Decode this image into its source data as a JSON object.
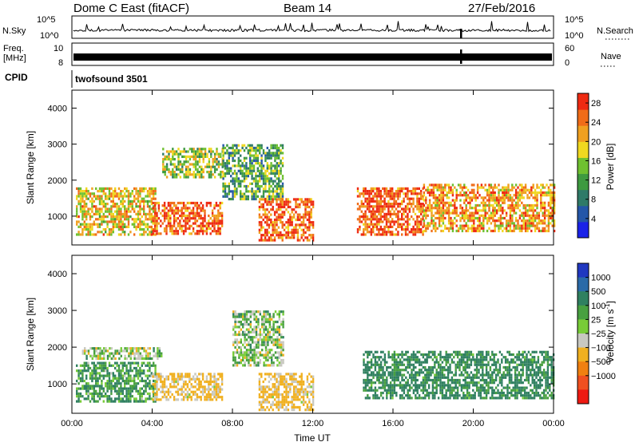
{
  "header": {
    "title": "Dome C East (fitACF)",
    "beam": "Beam 14",
    "date": "27/Feb/2016"
  },
  "params_panel": {
    "nsky_label": "N.Sky",
    "nsky_ticks": [
      "10^5",
      "10^0"
    ],
    "nsearch_label": "N.Search",
    "nsearch_ticks": [
      "10^5",
      "10^0"
    ],
    "freq_label": "Freq.",
    "freq_unit": "[MHz]",
    "freq_ticks": [
      "10",
      "8"
    ],
    "nave_label": "Nave",
    "nave_ticks": [
      "60",
      "0"
    ],
    "cpid_label": "CPID",
    "cpid_value": "twofsound 3501"
  },
  "chart_data": [
    {
      "type": "heatmap",
      "quantity": "power",
      "ylabel": "Slant Range [km]",
      "xlabel": "",
      "ylim": [
        200,
        4500
      ],
      "yticks": [
        1000,
        2000,
        3000,
        4000
      ],
      "xlim_hours": [
        0,
        24
      ],
      "xticks": [
        "00:00",
        "04:00",
        "08:00",
        "12:00",
        "16:00",
        "20:00",
        "00:00"
      ],
      "colorbar": {
        "label": "Power [dB]",
        "ticks": [
          "4",
          "8",
          "12",
          "16",
          "20",
          "24",
          "28"
        ],
        "range": [
          0,
          30
        ],
        "colors": [
          "#1a22e8",
          "#2456a8",
          "#2f7a68",
          "#3e9a40",
          "#6fc030",
          "#f0d820",
          "#f0a020",
          "#f06c18",
          "#ee2a12"
        ]
      },
      "echo_regions": [
        {
          "t_start": 0.2,
          "t_end": 4.2,
          "r_min": 500,
          "r_max": 1800,
          "mean_power": 20
        },
        {
          "t_start": 4.0,
          "t_end": 7.5,
          "r_min": 500,
          "r_max": 1400,
          "mean_power": 26
        },
        {
          "t_start": 4.5,
          "t_end": 7.5,
          "r_min": 2100,
          "r_max": 2900,
          "mean_power": 16
        },
        {
          "t_start": 7.5,
          "t_end": 10.5,
          "r_min": 1500,
          "r_max": 3000,
          "mean_power": 12
        },
        {
          "t_start": 9.3,
          "t_end": 12.0,
          "r_min": 300,
          "r_max": 1500,
          "mean_power": 26
        },
        {
          "t_start": 14.2,
          "t_end": 17.5,
          "r_min": 500,
          "r_max": 1800,
          "mean_power": 26
        },
        {
          "t_start": 17.5,
          "t_end": 24.0,
          "r_min": 600,
          "r_max": 1900,
          "mean_power": 22
        }
      ]
    },
    {
      "type": "heatmap",
      "quantity": "velocity",
      "ylabel": "Slant Range [km]",
      "xlabel": "Time UT",
      "ylim": [
        200,
        4500
      ],
      "yticks": [
        1000,
        2000,
        3000,
        4000
      ],
      "xlim_hours": [
        0,
        24
      ],
      "xticks": [
        "00:00",
        "04:00",
        "08:00",
        "12:00",
        "16:00",
        "20:00",
        "00:00"
      ],
      "colorbar": {
        "label": "Velocity [m s",
        "label_sup": "-1",
        "label_end": "]",
        "ticks": [
          "1000",
          "500",
          "100",
          "25",
          "−25",
          "−100",
          "−500",
          "−1000"
        ],
        "colors": [
          "#2038c0",
          "#2a6aa8",
          "#2f8060",
          "#48a040",
          "#78cc38",
          "#c8c8c0",
          "#f0b020",
          "#f08010",
          "#f05020",
          "#ee1a12"
        ]
      },
      "echo_regions": [
        {
          "t_start": 0.2,
          "t_end": 4.2,
          "r_min": 500,
          "r_max": 1600,
          "mean_velocity": 100
        },
        {
          "t_start": 0.5,
          "t_end": 4.5,
          "r_min": 1700,
          "r_max": 2000,
          "mean_velocity": 0
        },
        {
          "t_start": 4.0,
          "t_end": 7.5,
          "r_min": 600,
          "r_max": 1300,
          "mean_velocity": -150
        },
        {
          "t_start": 8.0,
          "t_end": 10.5,
          "r_min": 1500,
          "r_max": 3000,
          "mean_velocity": 0
        },
        {
          "t_start": 9.3,
          "t_end": 12.0,
          "r_min": 300,
          "r_max": 1300,
          "mean_velocity": -150
        },
        {
          "t_start": 14.5,
          "t_end": 24.0,
          "r_min": 600,
          "r_max": 1900,
          "mean_velocity": 150
        }
      ]
    }
  ]
}
